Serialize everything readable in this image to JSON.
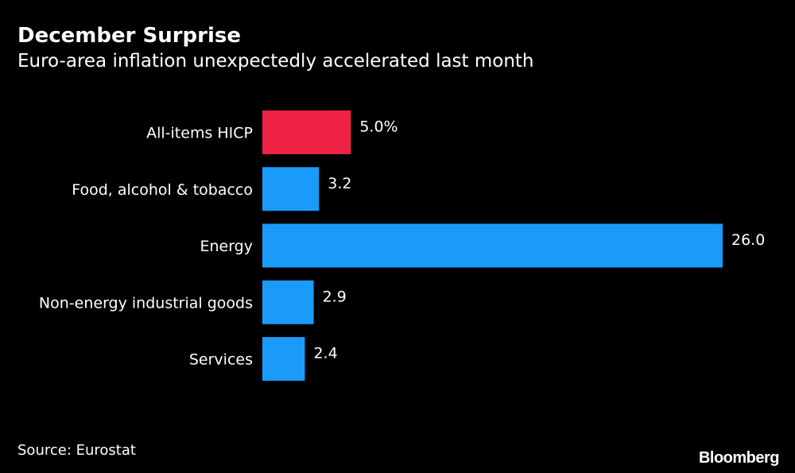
{
  "header": {
    "title": "December Surprise",
    "subtitle": "Euro-area inflation unexpectedly accelerated last month"
  },
  "footer": {
    "source": "Source: Eurostat",
    "brand": "Bloomberg"
  },
  "colors": {
    "background": "#000000",
    "highlight": "#EE2244",
    "bar": "#1A9BFA",
    "text": "#FFFFFF"
  },
  "chart_data": {
    "type": "bar",
    "orientation": "horizontal",
    "title": "December Surprise",
    "subtitle": "Euro-area inflation unexpectedly accelerated last month",
    "xlabel": "",
    "ylabel": "",
    "xlim": [
      0,
      26
    ],
    "grid": false,
    "categories": [
      "All-items HICP",
      "Food, alcohol & tobacco",
      "Energy",
      "Non-energy industrial goods",
      "Services"
    ],
    "values": [
      5.0,
      3.2,
      26.0,
      2.9,
      2.4
    ],
    "value_labels": [
      "5.0%",
      "3.2",
      "26.0",
      "2.9",
      "2.4"
    ],
    "highlight_index": 0
  }
}
